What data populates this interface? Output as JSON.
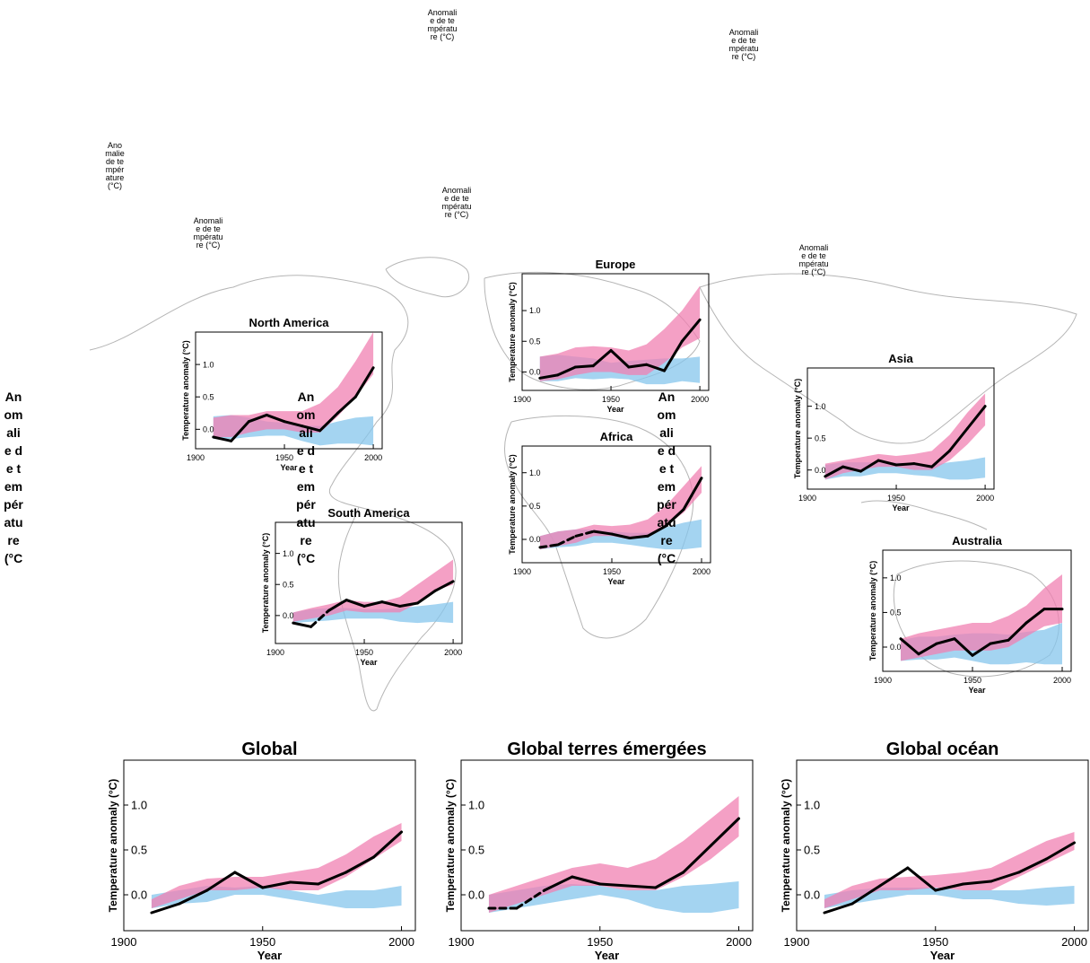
{
  "chart_data": [
    {
      "id": "na",
      "type": "line",
      "title": "North America",
      "xlabel": "Year",
      "ylabel": "Temperature anomaly (°C)",
      "xlim": [
        1900,
        2005
      ],
      "ylim": [
        -0.3,
        1.5
      ],
      "xticks": [
        "1900",
        "1950",
        "2000"
      ],
      "yticks": [
        "0.0",
        "0.5",
        "1.0"
      ],
      "x": [
        1910,
        1920,
        1930,
        1940,
        1950,
        1960,
        1970,
        1980,
        1990,
        2000
      ],
      "observed": [
        -0.12,
        -0.18,
        0.12,
        0.22,
        0.12,
        0.05,
        -0.02,
        0.25,
        0.5,
        0.95
      ],
      "dashed_segments": [],
      "natural_band": {
        "lower": [
          -0.15,
          -0.15,
          -0.12,
          -0.1,
          -0.1,
          -0.18,
          -0.25,
          -0.22,
          -0.22,
          -0.25
        ],
        "upper": [
          0.2,
          0.22,
          0.18,
          0.12,
          0.1,
          0.06,
          0.05,
          0.12,
          0.18,
          0.2
        ]
      },
      "forced_band": {
        "lower": [
          -0.12,
          -0.12,
          -0.05,
          0.0,
          0.0,
          -0.05,
          -0.05,
          0.2,
          0.5,
          0.85
        ],
        "upper": [
          0.18,
          0.22,
          0.22,
          0.28,
          0.28,
          0.28,
          0.4,
          0.65,
          1.05,
          1.5
        ]
      },
      "colors": {
        "natural": "#86c5ec",
        "forced": "#f080b2",
        "observed": "#000000"
      }
    },
    {
      "id": "eu",
      "type": "line",
      "title": "Europe",
      "xlabel": "Year",
      "ylabel": "Temperature anomaly (°C)",
      "xlim": [
        1900,
        2005
      ],
      "ylim": [
        -0.3,
        1.6
      ],
      "xticks": [
        "1900",
        "1950",
        "2000"
      ],
      "yticks": [
        "0.0",
        "0.5",
        "1.0"
      ],
      "x": [
        1910,
        1920,
        1930,
        1940,
        1950,
        1960,
        1970,
        1980,
        1990,
        2000
      ],
      "observed": [
        -0.1,
        -0.05,
        0.08,
        0.1,
        0.35,
        0.08,
        0.12,
        0.02,
        0.5,
        0.85
      ],
      "dashed_segments": [],
      "natural_band": {
        "lower": [
          -0.15,
          -0.15,
          -0.1,
          -0.12,
          -0.1,
          -0.12,
          -0.2,
          -0.2,
          -0.15,
          -0.18
        ],
        "upper": [
          0.25,
          0.28,
          0.25,
          0.22,
          0.15,
          0.18,
          0.2,
          0.22,
          0.22,
          0.25
        ]
      },
      "forced_band": {
        "lower": [
          -0.15,
          -0.12,
          -0.05,
          0.0,
          0.0,
          -0.05,
          -0.05,
          0.15,
          0.4,
          0.55
        ],
        "upper": [
          0.25,
          0.3,
          0.4,
          0.42,
          0.4,
          0.35,
          0.45,
          0.7,
          1.0,
          1.4
        ]
      },
      "colors": {
        "natural": "#86c5ec",
        "forced": "#f080b2",
        "observed": "#000000"
      }
    },
    {
      "id": "af",
      "type": "line",
      "title": "Africa",
      "xlabel": "Year",
      "ylabel": "Temperature anomaly (°C)",
      "xlim": [
        1900,
        2005
      ],
      "ylim": [
        -0.35,
        1.4
      ],
      "xticks": [
        "1900",
        "1950",
        "2000"
      ],
      "yticks": [
        "0.0",
        "0.5",
        "1.0"
      ],
      "x": [
        1910,
        1920,
        1930,
        1940,
        1950,
        1960,
        1970,
        1980,
        1990,
        2000
      ],
      "observed": [
        -0.12,
        -0.08,
        0.05,
        0.12,
        0.08,
        0.02,
        0.05,
        0.2,
        0.45,
        0.92
      ],
      "dashed_segments": [
        [
          0,
          3
        ]
      ],
      "natural_band": {
        "lower": [
          -0.15,
          -0.12,
          -0.1,
          -0.05,
          -0.05,
          -0.08,
          -0.12,
          -0.15,
          -0.15,
          -0.12
        ],
        "upper": [
          0.05,
          0.12,
          0.15,
          0.15,
          0.12,
          0.1,
          0.1,
          0.18,
          0.25,
          0.3
        ]
      },
      "forced_band": {
        "lower": [
          -0.15,
          -0.1,
          -0.05,
          0.05,
          0.05,
          0.0,
          0.05,
          0.2,
          0.4,
          0.7
        ],
        "upper": [
          0.05,
          0.12,
          0.15,
          0.22,
          0.2,
          0.22,
          0.3,
          0.5,
          0.8,
          1.1
        ]
      },
      "colors": {
        "natural": "#86c5ec",
        "forced": "#f080b2",
        "observed": "#000000"
      }
    },
    {
      "id": "as",
      "type": "line",
      "title": "Asia",
      "xlabel": "Year",
      "ylabel": "Temperature anomaly (°C)",
      "xlim": [
        1900,
        2005
      ],
      "ylim": [
        -0.3,
        1.6
      ],
      "xticks": [
        "1900",
        "1950",
        "2000"
      ],
      "yticks": [
        "0.0",
        "0.5",
        "1.0"
      ],
      "x": [
        1910,
        1920,
        1930,
        1940,
        1950,
        1960,
        1970,
        1980,
        1990,
        2000
      ],
      "observed": [
        -0.1,
        0.05,
        -0.02,
        0.15,
        0.08,
        0.1,
        0.05,
        0.3,
        0.65,
        1.0
      ],
      "dashed_segments": [],
      "natural_band": {
        "lower": [
          -0.15,
          -0.1,
          -0.1,
          -0.05,
          -0.05,
          -0.08,
          -0.1,
          -0.15,
          -0.15,
          -0.12
        ],
        "upper": [
          0.08,
          0.12,
          0.12,
          0.12,
          0.12,
          0.1,
          0.08,
          0.12,
          0.15,
          0.2
        ]
      },
      "forced_band": {
        "lower": [
          -0.15,
          -0.05,
          0.0,
          0.05,
          0.05,
          0.0,
          0.0,
          0.15,
          0.4,
          0.7
        ],
        "upper": [
          0.1,
          0.15,
          0.2,
          0.25,
          0.22,
          0.25,
          0.3,
          0.55,
          0.9,
          1.2
        ]
      },
      "colors": {
        "natural": "#86c5ec",
        "forced": "#f080b2",
        "observed": "#000000"
      }
    },
    {
      "id": "sa",
      "type": "line",
      "title": "South America",
      "xlabel": "Year",
      "ylabel": "Temperature anomaly (°C)",
      "xlim": [
        1900,
        2005
      ],
      "ylim": [
        -0.45,
        1.5
      ],
      "xticks": [
        "1900",
        "1950",
        "2000"
      ],
      "yticks": [
        "0.0",
        "0.5",
        "1.0"
      ],
      "x": [
        1910,
        1920,
        1930,
        1940,
        1950,
        1960,
        1970,
        1980,
        1990,
        2000
      ],
      "observed": [
        -0.12,
        -0.18,
        0.08,
        0.25,
        0.15,
        0.22,
        0.15,
        0.2,
        0.4,
        0.55
      ],
      "dashed_segments": [
        [
          1,
          2
        ]
      ],
      "natural_band": {
        "lower": [
          -0.12,
          -0.1,
          -0.08,
          -0.05,
          -0.05,
          -0.05,
          -0.1,
          -0.12,
          -0.1,
          -0.12
        ],
        "upper": [
          0.05,
          0.1,
          0.12,
          0.12,
          0.1,
          0.1,
          0.12,
          0.15,
          0.18,
          0.22
        ]
      },
      "forced_band": {
        "lower": [
          -0.1,
          -0.05,
          0.0,
          0.08,
          0.05,
          0.05,
          0.05,
          0.2,
          0.4,
          0.5
        ],
        "upper": [
          0.05,
          0.12,
          0.18,
          0.25,
          0.22,
          0.22,
          0.3,
          0.5,
          0.7,
          0.9
        ]
      },
      "colors": {
        "natural": "#86c5ec",
        "forced": "#f080b2",
        "observed": "#000000"
      }
    },
    {
      "id": "au",
      "type": "line",
      "title": "Australia",
      "xlabel": "Year",
      "ylabel": "Temperature anomaly (°C)",
      "xlim": [
        1900,
        2005
      ],
      "ylim": [
        -0.35,
        1.4
      ],
      "xticks": [
        "1900",
        "1950",
        "2000"
      ],
      "yticks": [
        "0.0",
        "0.5",
        "1.0"
      ],
      "x": [
        1910,
        1920,
        1930,
        1940,
        1950,
        1960,
        1970,
        1980,
        1990,
        2000
      ],
      "observed": [
        0.12,
        -0.1,
        0.05,
        0.12,
        -0.12,
        0.05,
        0.1,
        0.35,
        0.55,
        0.55
      ],
      "dashed_segments": [],
      "natural_band": {
        "lower": [
          -0.2,
          -0.18,
          -0.18,
          -0.15,
          -0.2,
          -0.25,
          -0.25,
          -0.22,
          -0.25,
          -0.25
        ],
        "upper": [
          0.1,
          0.15,
          0.15,
          0.18,
          0.2,
          0.2,
          0.18,
          0.22,
          0.25,
          0.35
        ]
      },
      "forced_band": {
        "lower": [
          -0.2,
          -0.15,
          -0.1,
          -0.05,
          -0.05,
          -0.05,
          0.0,
          0.15,
          0.3,
          0.35
        ],
        "upper": [
          0.12,
          0.2,
          0.25,
          0.3,
          0.35,
          0.35,
          0.45,
          0.6,
          0.85,
          1.05
        ]
      },
      "colors": {
        "natural": "#86c5ec",
        "forced": "#f080b2",
        "observed": "#000000"
      }
    },
    {
      "id": "gl",
      "type": "line",
      "title": "Global",
      "xlabel": "Year",
      "ylabel": "Temperature anomaly (°C)",
      "xlim": [
        1900,
        2005
      ],
      "ylim": [
        -0.4,
        1.5
      ],
      "xticks": [
        "1900",
        "1950",
        "2000"
      ],
      "yticks": [
        "0.0",
        "0.5",
        "1.0"
      ],
      "x": [
        1910,
        1920,
        1930,
        1940,
        1950,
        1960,
        1970,
        1980,
        1990,
        2000
      ],
      "observed": [
        -0.2,
        -0.1,
        0.05,
        0.25,
        0.08,
        0.14,
        0.12,
        0.25,
        0.42,
        0.7
      ],
      "dashed_segments": [],
      "natural_band": {
        "lower": [
          -0.15,
          -0.1,
          -0.08,
          0.0,
          0.0,
          -0.05,
          -0.1,
          -0.15,
          -0.15,
          -0.12
        ],
        "upper": [
          0.0,
          0.05,
          0.1,
          0.08,
          0.1,
          0.05,
          0.0,
          0.05,
          0.05,
          0.1
        ]
      },
      "forced_band": {
        "lower": [
          -0.15,
          -0.05,
          0.05,
          0.05,
          0.08,
          0.05,
          0.05,
          0.2,
          0.4,
          0.6
        ],
        "upper": [
          -0.05,
          0.1,
          0.18,
          0.2,
          0.2,
          0.25,
          0.3,
          0.45,
          0.65,
          0.8
        ]
      },
      "colors": {
        "natural": "#86c5ec",
        "forced": "#f080b2",
        "observed": "#000000"
      }
    },
    {
      "id": "gland",
      "type": "line",
      "title": "Global terres émergées",
      "xlabel": "Year",
      "ylabel": "Temperature anomaly (°C)",
      "xlim": [
        1900,
        2005
      ],
      "ylim": [
        -0.4,
        1.5
      ],
      "xticks": [
        "1900",
        "1950",
        "2000"
      ],
      "yticks": [
        "0.0",
        "0.5",
        "1.0"
      ],
      "x": [
        1910,
        1920,
        1930,
        1940,
        1950,
        1960,
        1970,
        1980,
        1990,
        2000
      ],
      "observed": [
        -0.15,
        -0.15,
        0.05,
        0.2,
        0.12,
        0.1,
        0.08,
        0.25,
        0.55,
        0.85
      ],
      "dashed_segments": [
        [
          0,
          2
        ]
      ],
      "natural_band": {
        "lower": [
          -0.2,
          -0.15,
          -0.1,
          -0.05,
          0.0,
          -0.05,
          -0.15,
          -0.2,
          -0.2,
          -0.15
        ],
        "upper": [
          0.0,
          0.05,
          0.1,
          0.12,
          0.1,
          0.05,
          0.05,
          0.1,
          0.12,
          0.15
        ]
      },
      "forced_band": {
        "lower": [
          -0.2,
          -0.1,
          0.0,
          0.1,
          0.1,
          0.05,
          0.05,
          0.2,
          0.4,
          0.65
        ],
        "upper": [
          0.0,
          0.1,
          0.2,
          0.3,
          0.35,
          0.3,
          0.4,
          0.6,
          0.85,
          1.1
        ]
      },
      "colors": {
        "natural": "#86c5ec",
        "forced": "#f080b2",
        "observed": "#000000"
      }
    },
    {
      "id": "gocean",
      "type": "line",
      "title": "Global océan",
      "xlabel": "Year",
      "ylabel": "Temperature anomaly (°C)",
      "xlim": [
        1900,
        2005
      ],
      "ylim": [
        -0.4,
        1.5
      ],
      "xticks": [
        "1900",
        "1950",
        "2000"
      ],
      "yticks": [
        "0.0",
        "0.5",
        "1.0"
      ],
      "x": [
        1910,
        1920,
        1930,
        1940,
        1950,
        1960,
        1970,
        1980,
        1990,
        2000
      ],
      "observed": [
        -0.2,
        -0.1,
        0.1,
        0.3,
        0.05,
        0.12,
        0.15,
        0.25,
        0.4,
        0.58
      ],
      "dashed_segments": [],
      "natural_band": {
        "lower": [
          -0.15,
          -0.1,
          -0.05,
          0.0,
          0.0,
          -0.05,
          -0.05,
          -0.1,
          -0.12,
          -0.1
        ],
        "upper": [
          0.0,
          0.05,
          0.08,
          0.08,
          0.08,
          0.05,
          0.05,
          0.05,
          0.08,
          0.1
        ]
      },
      "forced_band": {
        "lower": [
          -0.15,
          -0.05,
          0.05,
          0.05,
          0.08,
          0.05,
          0.05,
          0.2,
          0.35,
          0.5
        ],
        "upper": [
          -0.05,
          0.1,
          0.18,
          0.2,
          0.22,
          0.25,
          0.3,
          0.45,
          0.6,
          0.7
        ]
      },
      "colors": {
        "natural": "#86c5ec",
        "forced": "#f080b2",
        "observed": "#000000"
      }
    }
  ],
  "overlay_labels": {
    "small_text": "Anomalie de température (°C)",
    "bold_text": "Anomalie de température (°C"
  }
}
